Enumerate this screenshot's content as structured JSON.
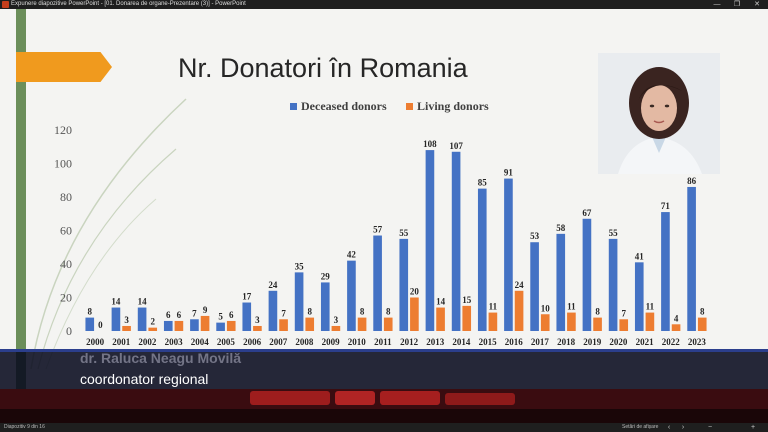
{
  "window": {
    "title": "Expunere diapozitive PowerPoint - [01. Donarea de organe-Prezentare (3)] - PowerPoint",
    "minimize_glyph": "—",
    "maximize_glyph": "❐",
    "close_glyph": "✕"
  },
  "slide": {
    "title": "Nr. Donatori în Romania",
    "accent_color": "#f09a1e",
    "bar_color": "#6b8e5a"
  },
  "chart_data": {
    "type": "bar",
    "title": "",
    "legend_position": "top",
    "categories": [
      "2000",
      "2001",
      "2002",
      "2003",
      "2004",
      "2005",
      "2006",
      "2007",
      "2008",
      "2009",
      "2010",
      "2011",
      "2012",
      "2013",
      "2014",
      "2015",
      "2016",
      "2017",
      "2018",
      "2019",
      "2020",
      "2021",
      "2022",
      "2023"
    ],
    "series": [
      {
        "name": "Deceased donors",
        "color": "#4472c4",
        "values": [
          8,
          14,
          14,
          6,
          7,
          5,
          17,
          24,
          35,
          29,
          42,
          57,
          55,
          108,
          107,
          85,
          91,
          53,
          58,
          67,
          55,
          41,
          71,
          86
        ]
      },
      {
        "name": "Living donors",
        "color": "#ed7d31",
        "values": [
          0,
          3,
          2,
          6,
          9,
          6,
          3,
          7,
          8,
          3,
          8,
          8,
          20,
          14,
          15,
          11,
          24,
          10,
          11,
          8,
          7,
          11,
          4,
          8
        ]
      }
    ],
    "ylim": [
      0,
      120
    ],
    "yticks": [
      0,
      20,
      40,
      60,
      80,
      100,
      120
    ],
    "grid": false
  },
  "overlay": {
    "name": "dr. Raluca Neagu Movilă",
    "role": "coordonator regional"
  },
  "statusbar": {
    "slide_info": "Diapozitiv 9 din 16",
    "settings_label": "Setări de afișare",
    "prev_glyph": "‹",
    "next_glyph": "›",
    "minus_glyph": "−",
    "plus_glyph": "+"
  }
}
